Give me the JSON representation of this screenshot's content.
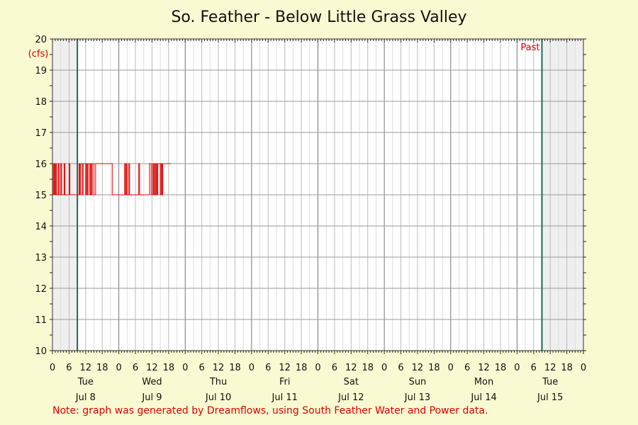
{
  "chart_data": {
    "type": "line",
    "title": "So. Feather - Below Little Grass Valley",
    "ylabel": "(cfs)",
    "ylim": [
      10,
      20
    ],
    "y_ticks": [
      10,
      11,
      12,
      13,
      14,
      15,
      16,
      17,
      18,
      19,
      20
    ],
    "x_range_hours": [
      0,
      192
    ],
    "hour_tick_labels": [
      "0",
      "6",
      "12",
      "18"
    ],
    "days": [
      {
        "dow": "Tue",
        "date": "Jul 8"
      },
      {
        "dow": "Wed",
        "date": "Jul 9"
      },
      {
        "dow": "Thu",
        "date": "Jul 10"
      },
      {
        "dow": "Fri",
        "date": "Jul 11"
      },
      {
        "dow": "Sat",
        "date": "Jul 12"
      },
      {
        "dow": "Sun",
        "date": "Jul 13"
      },
      {
        "dow": "Mon",
        "date": "Jul 14"
      },
      {
        "dow": "Tue",
        "date": "Jul 15"
      }
    ],
    "past_label": "Past",
    "vertical_markers_hours": [
      9,
      177
    ],
    "shaded_ranges_hours": [
      [
        0,
        9
      ],
      [
        177,
        192
      ]
    ],
    "grid": true,
    "series": [
      {
        "color": "#e00000",
        "x": [
          0,
          0.3,
          0.6,
          0.9,
          1.2,
          1.5,
          1.8,
          2.1,
          2.4,
          2.7,
          3.0,
          3.3,
          3.6,
          3.9,
          4.2,
          4.5,
          4.8,
          5.1,
          5.4,
          5.7,
          6.0,
          6.3,
          6.6,
          6.9,
          7.2,
          7.5,
          7.8,
          8.1,
          8.4,
          8.7,
          9.0,
          9.3,
          9.6,
          9.9,
          10.2,
          10.5,
          10.8,
          11.1,
          11.4,
          11.7,
          12.0,
          12.3,
          12.6,
          12.9,
          13.2,
          13.5,
          13.8,
          14.1,
          14.4,
          14.7,
          15.0,
          15.3,
          15.6,
          15.9,
          16.2,
          16.5,
          16.8,
          17.1,
          17.4,
          17.7,
          18.0,
          18.3,
          18.6,
          18.9,
          19.2,
          19.5,
          19.8,
          20.1,
          20.4,
          20.7,
          21.0,
          21.3,
          21.6,
          21.9,
          22.2,
          22.5,
          22.8,
          23.1,
          23.4,
          23.7,
          24.0,
          24.3,
          24.6,
          24.9,
          25.2,
          25.5,
          25.8,
          26.1,
          26.4,
          26.7,
          27.0,
          27.3,
          27.6,
          27.9,
          28.2,
          28.5,
          28.8,
          29.1,
          29.4,
          29.7,
          30.0,
          30.3,
          30.6,
          30.9,
          31.2,
          31.5,
          31.8,
          32.1,
          32.4,
          32.7,
          33.0,
          33.3,
          33.6,
          33.9,
          34.2,
          34.5,
          34.8,
          35.1,
          35.4,
          35.7,
          36.0,
          36.3,
          36.6,
          36.9,
          37.2,
          37.5,
          37.8,
          38.1,
          38.4,
          38.7,
          39.0,
          39.3,
          39.6,
          39.9,
          40.2,
          40.5,
          40.8,
          41.1,
          41.4,
          41.7,
          42.0,
          42.3,
          42.6,
          42.9
        ],
        "y": [
          16,
          15,
          16,
          15,
          16,
          15,
          15,
          16,
          15,
          15,
          16,
          15,
          15,
          15,
          16,
          15,
          15,
          15,
          15,
          15,
          16,
          15,
          15,
          15,
          15,
          15,
          15,
          15,
          15,
          15,
          15,
          15,
          16,
          15,
          16,
          16,
          15,
          16,
          16,
          16,
          15,
          16,
          15,
          16,
          16,
          15,
          16,
          15,
          16,
          16,
          15,
          15,
          16,
          16,
          16,
          16,
          16,
          16,
          16,
          16,
          16,
          16,
          16,
          16,
          16,
          16,
          16,
          16,
          16,
          16,
          16,
          16,
          15,
          15,
          15,
          15,
          15,
          15,
          15,
          15,
          15,
          15,
          15,
          15,
          15,
          15,
          15,
          16,
          15,
          16,
          15,
          15,
          16,
          15,
          15,
          15,
          15,
          15,
          15,
          15,
          15,
          15,
          15,
          15,
          16,
          15,
          15,
          15,
          15,
          15,
          15,
          15,
          15,
          15,
          15,
          15,
          15,
          16,
          16,
          15,
          15,
          16,
          15,
          16,
          15,
          16,
          15,
          16,
          16,
          16,
          15,
          16,
          15,
          16,
          16,
          16,
          16,
          16,
          16,
          16,
          16,
          16,
          16,
          16
        ]
      }
    ]
  },
  "note": "Note: graph was generated by Dreamflows, using South Feather Water and Power data."
}
